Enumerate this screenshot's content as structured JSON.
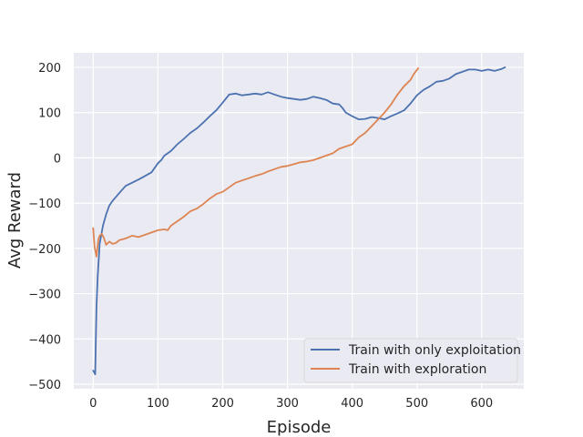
{
  "chart_data": {
    "type": "line",
    "xlabel": "Episode",
    "ylabel": "Avg Reward",
    "xlim": [
      -30,
      665
    ],
    "ylim": [
      -510,
      232
    ],
    "xticks": [
      0,
      100,
      200,
      300,
      400,
      500,
      600
    ],
    "yticks": [
      200,
      100,
      0,
      -100,
      -200,
      -300,
      -400,
      -500
    ],
    "xtick_labels": [
      "0",
      "100",
      "200",
      "300",
      "400",
      "500",
      "600"
    ],
    "ytick_labels": [
      "200",
      "100",
      "0",
      "−100",
      "−200",
      "−300",
      "−400",
      "−500"
    ],
    "grid": true,
    "legend_position": "lower-right",
    "series": [
      {
        "name": "Train with only exploitation",
        "color": "#4c72b0",
        "x": [
          0,
          3,
          5,
          7,
          10,
          15,
          20,
          25,
          30,
          40,
          50,
          60,
          70,
          80,
          90,
          100,
          105,
          110,
          120,
          130,
          140,
          150,
          160,
          170,
          180,
          190,
          200,
          210,
          220,
          230,
          240,
          250,
          260,
          270,
          280,
          290,
          300,
          310,
          320,
          330,
          340,
          350,
          360,
          370,
          380,
          385,
          390,
          400,
          410,
          420,
          430,
          440,
          450,
          460,
          470,
          480,
          490,
          500,
          510,
          520,
          530,
          540,
          550,
          560,
          570,
          580,
          590,
          600,
          610,
          620,
          630,
          636
        ],
        "y": [
          -470,
          -478,
          -330,
          -260,
          -190,
          -150,
          -125,
          -105,
          -95,
          -78,
          -62,
          -55,
          -48,
          -40,
          -32,
          -12,
          -5,
          5,
          15,
          30,
          42,
          55,
          65,
          78,
          92,
          105,
          122,
          140,
          142,
          138,
          140,
          142,
          140,
          145,
          140,
          135,
          132,
          130,
          128,
          130,
          135,
          132,
          128,
          120,
          118,
          110,
          100,
          92,
          85,
          86,
          90,
          88,
          85,
          92,
          98,
          105,
          120,
          138,
          150,
          158,
          168,
          170,
          175,
          185,
          190,
          195,
          195,
          192,
          195,
          192,
          196,
          200
        ]
      },
      {
        "name": "Train with exploration",
        "color": "#dd8452",
        "x": [
          0,
          2,
          5,
          8,
          10,
          13,
          16,
          20,
          25,
          30,
          35,
          40,
          50,
          60,
          70,
          80,
          90,
          100,
          110,
          115,
          120,
          130,
          140,
          150,
          160,
          170,
          180,
          190,
          200,
          210,
          220,
          230,
          240,
          250,
          260,
          270,
          280,
          290,
          300,
          310,
          320,
          330,
          340,
          350,
          360,
          370,
          380,
          390,
          400,
          410,
          420,
          430,
          440,
          450,
          460,
          470,
          480,
          490,
          495,
          502
        ],
        "y": [
          -155,
          -195,
          -218,
          -180,
          -172,
          -168,
          -175,
          -192,
          -185,
          -190,
          -188,
          -182,
          -178,
          -172,
          -175,
          -170,
          -165,
          -160,
          -158,
          -160,
          -150,
          -140,
          -130,
          -118,
          -112,
          -102,
          -90,
          -80,
          -75,
          -65,
          -55,
          -50,
          -45,
          -40,
          -36,
          -30,
          -25,
          -20,
          -18,
          -14,
          -10,
          -8,
          -5,
          0,
          5,
          10,
          20,
          25,
          30,
          45,
          55,
          70,
          85,
          100,
          118,
          140,
          158,
          172,
          185,
          198
        ]
      }
    ]
  }
}
